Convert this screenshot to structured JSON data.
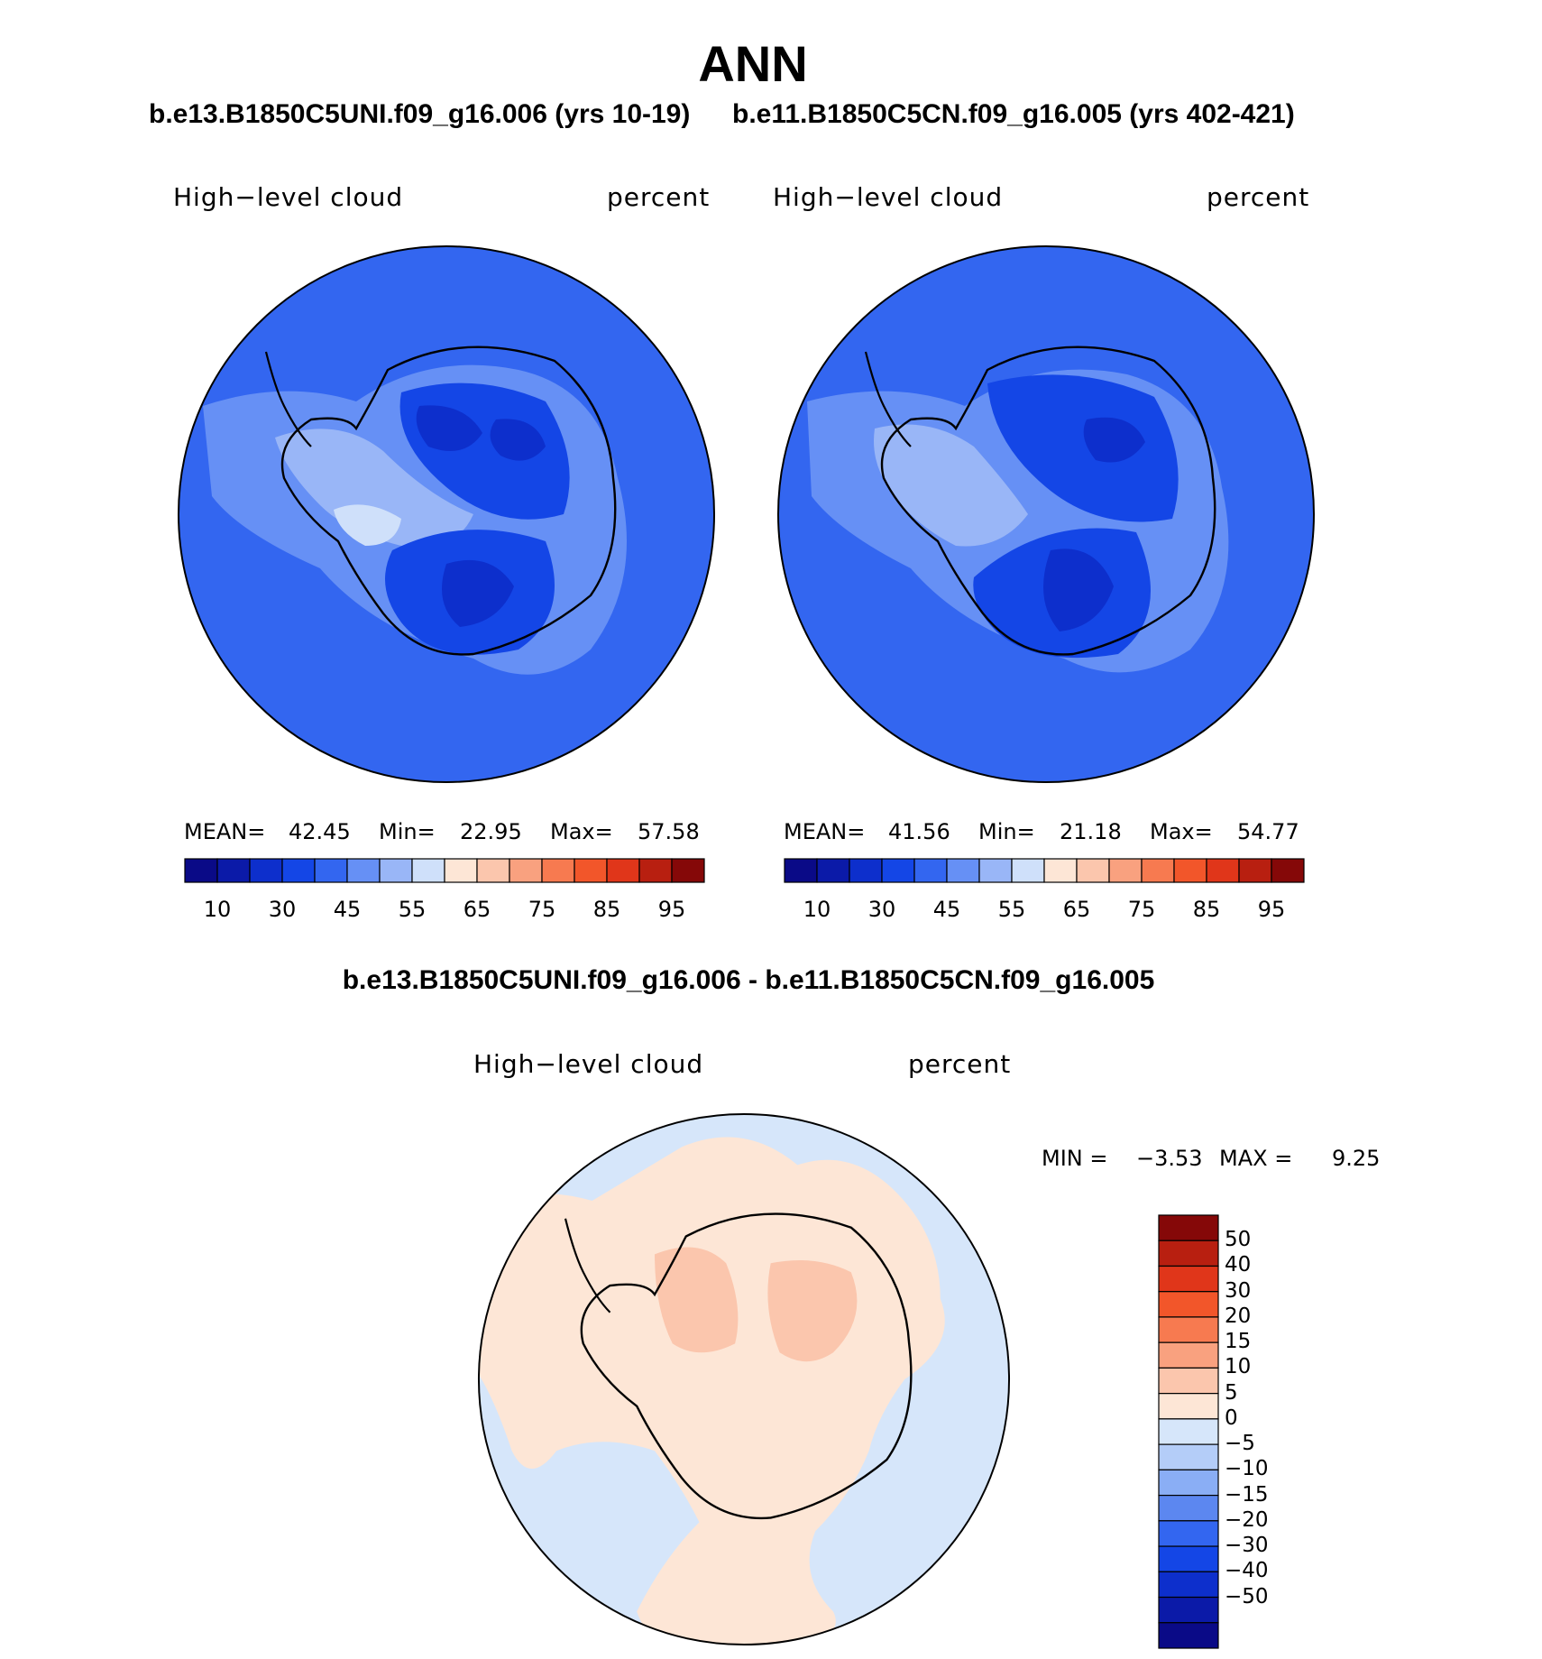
{
  "title": "ANN",
  "case1": "b.e13.B1850C5UNI.f09_g16.006 (yrs 10-19)",
  "case2": "b.e11.B1850C5CN.f09_g16.005 (yrs 402-421)",
  "diff_title": "b.e13.B1850C5UNI.f09_g16.006 - b.e11.B1850C5CN.f09_g16.005",
  "panels": [
    {
      "variable": "High−level cloud",
      "units": "percent",
      "mean_label": "MEAN=",
      "mean": "42.45",
      "min_label": "Min=",
      "min": "22.95",
      "max_label": "Max=",
      "max": "57.58"
    },
    {
      "variable": "High−level cloud",
      "units": "percent",
      "mean_label": "MEAN=",
      "mean": "41.56",
      "min_label": "Min=",
      "min": "21.18",
      "max_label": "Max=",
      "max": "54.77"
    }
  ],
  "diff_panel": {
    "variable": "High−level cloud",
    "units": "percent",
    "min_label": "MIN =",
    "min": "−3.53",
    "max_label": "MAX =",
    "max": "9.25"
  },
  "abs_colorbar": {
    "colors": [
      "#0a0a87",
      "#0b1aa8",
      "#0d2fcc",
      "#1446e6",
      "#3366f0",
      "#6690f5",
      "#99b6f7",
      "#cfe0fa",
      "#fde6d6",
      "#fbc6ad",
      "#f9a17f",
      "#f77a50",
      "#f2562a",
      "#e0361a",
      "#b81f10",
      "#850808"
    ],
    "tick_labels": [
      "10",
      "30",
      "45",
      "55",
      "65",
      "75",
      "85",
      "95"
    ]
  },
  "diff_colorbar": {
    "colors": [
      "#850808",
      "#b81f10",
      "#e0361a",
      "#f2562a",
      "#f77a50",
      "#f9a17f",
      "#fbc6ad",
      "#fde6d6",
      "#d6e6fa",
      "#b4cdf8",
      "#8aaef5",
      "#5c87f0",
      "#3366f0",
      "#1446e6",
      "#0d2fcc",
      "#0b1aa8",
      "#0a0a87"
    ],
    "tick_labels": [
      "50",
      "40",
      "30",
      "20",
      "15",
      "10",
      "5",
      "0",
      "−5",
      "−10",
      "−15",
      "−20",
      "−30",
      "−40",
      "−50"
    ]
  }
}
